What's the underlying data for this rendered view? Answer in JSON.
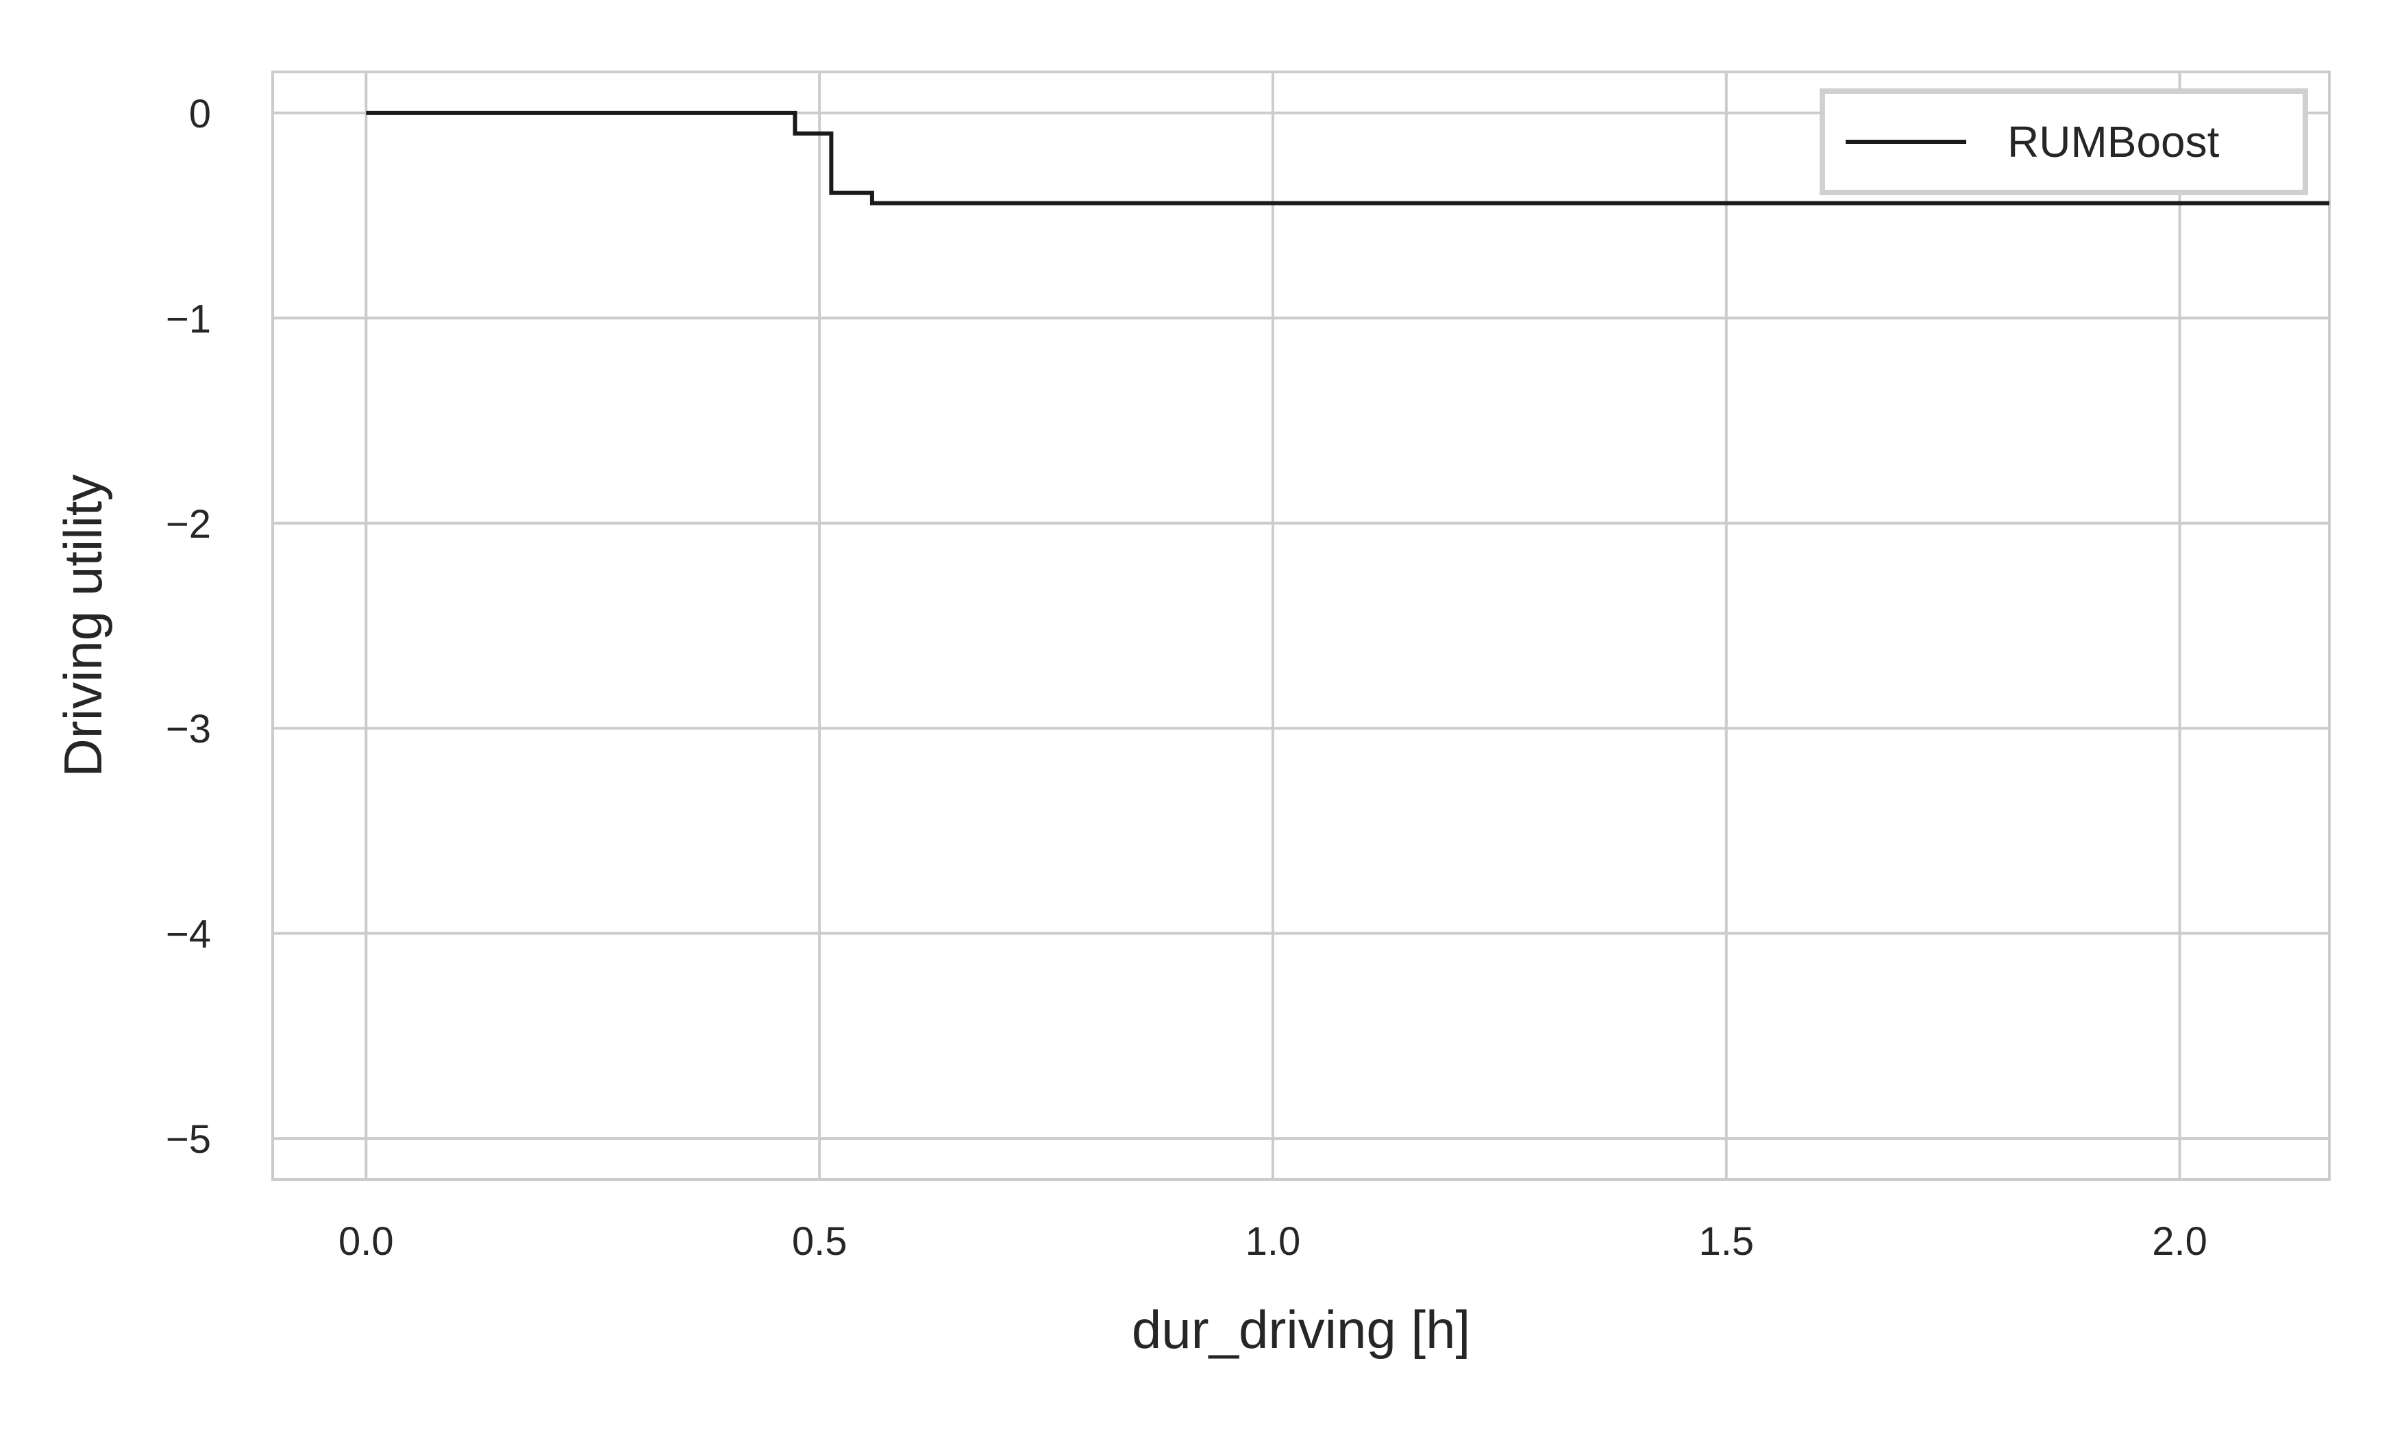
{
  "chart_data": {
    "type": "line",
    "title": "",
    "xlabel": "dur_driving [h]",
    "ylabel": "Driving utility",
    "xlim": [
      -0.103,
      2.165
    ],
    "ylim": [
      -5.2,
      0.2
    ],
    "x_ticks": [
      0.0,
      0.5,
      1.0,
      1.5,
      2.0
    ],
    "x_tick_labels": [
      "0.0",
      "0.5",
      "1.0",
      "1.5",
      "2.0"
    ],
    "y_ticks": [
      0,
      -1,
      -2,
      -3,
      -4,
      -5
    ],
    "y_tick_labels": [
      "0",
      "−1",
      "−2",
      "−3",
      "−4",
      "−5"
    ],
    "grid": true,
    "legend_position": "top-right",
    "series": [
      {
        "name": "RUMBoost",
        "color": "#1a1a1a",
        "step": true,
        "x": [
          0.0,
          0.473,
          0.513,
          0.558,
          2.165
        ],
        "y": [
          0.0,
          -0.1,
          -0.39,
          -0.44,
          -0.44
        ]
      }
    ]
  }
}
